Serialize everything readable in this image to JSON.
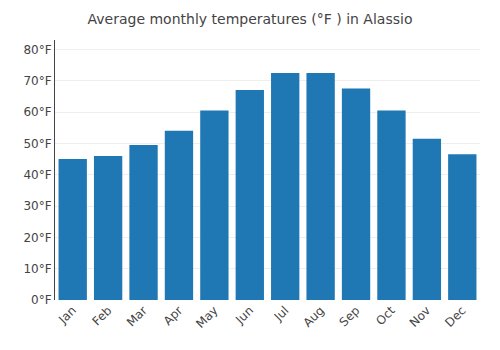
{
  "chart_data": {
    "type": "bar",
    "title": "Average monthly temperatures (°F ) in Alassio",
    "categories": [
      "Jan",
      "Feb",
      "Mar",
      "Apr",
      "May",
      "Jun",
      "Jul",
      "Aug",
      "Sep",
      "Oct",
      "Nov",
      "Dec"
    ],
    "values": [
      45,
      46,
      49.5,
      54,
      60.5,
      67,
      72.5,
      72.5,
      67.5,
      60.5,
      51.5,
      46.5
    ],
    "ylim": [
      0,
      83
    ],
    "yticks": [
      {
        "value": 0,
        "label": "0°F"
      },
      {
        "value": 10,
        "label": "10°F"
      },
      {
        "value": 20,
        "label": "20°F"
      },
      {
        "value": 30,
        "label": "30°F"
      },
      {
        "value": 40,
        "label": "40°F"
      },
      {
        "value": 50,
        "label": "50°F"
      },
      {
        "value": 60,
        "label": "60°F"
      },
      {
        "value": 70,
        "label": "70°F"
      },
      {
        "value": 80,
        "label": "80°F"
      }
    ],
    "grid": true
  }
}
